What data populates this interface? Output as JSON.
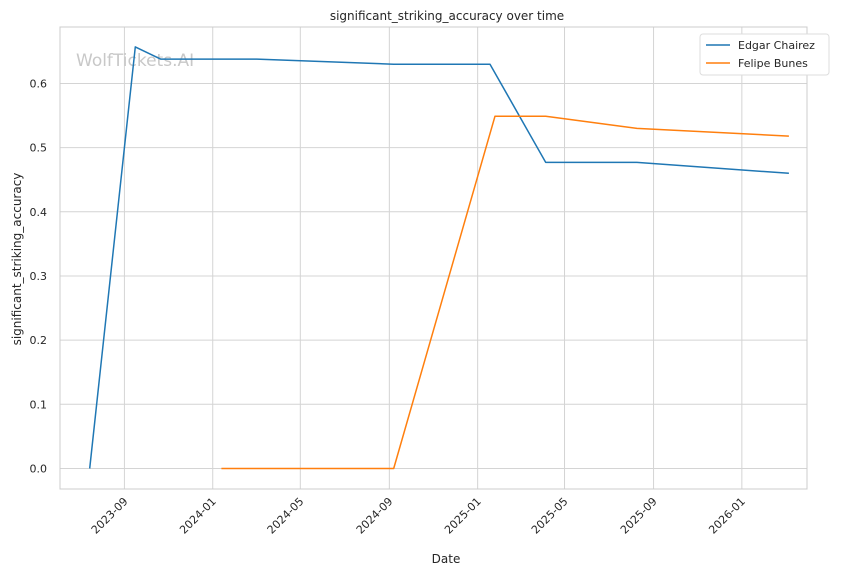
{
  "chart_data": {
    "type": "line",
    "title": "significant_striking_accuracy over time",
    "xlabel": "Date",
    "ylabel": "significant_striking_accuracy",
    "watermark": "WolfTickets.AI",
    "x_ticks": [
      "2023-09",
      "2024-01",
      "2024-05",
      "2024-09",
      "2025-01",
      "2025-05",
      "2025-09",
      "2026-01"
    ],
    "y_ticks": [
      0.0,
      0.1,
      0.2,
      0.3,
      0.4,
      0.5,
      0.6
    ],
    "y_tick_labels": [
      "0.0",
      "0.1",
      "0.2",
      "0.3",
      "0.4",
      "0.5",
      "0.6"
    ],
    "xlim": [
      "2023-06-04",
      "2026-04-01"
    ],
    "ylim": [
      -0.032,
      0.688
    ],
    "grid": true,
    "legend_position": "top-right",
    "series": [
      {
        "name": "Edgar Chairez",
        "color": "#1f77b4",
        "points": [
          {
            "x": "2023-07-15",
            "y": 0.0
          },
          {
            "x": "2023-09-16",
            "y": 0.657
          },
          {
            "x": "2023-10-21",
            "y": 0.638
          },
          {
            "x": "2024-03-02",
            "y": 0.638
          },
          {
            "x": "2024-09-07",
            "y": 0.63
          },
          {
            "x": "2025-01-18",
            "y": 0.63
          },
          {
            "x": "2025-04-05",
            "y": 0.477
          },
          {
            "x": "2025-08-09",
            "y": 0.477
          },
          {
            "x": "2026-03-07",
            "y": 0.46
          }
        ]
      },
      {
        "name": "Felipe Bunes",
        "color": "#ff7f0e",
        "points": [
          {
            "x": "2024-01-13",
            "y": 0.0
          },
          {
            "x": "2024-09-07",
            "y": 0.0
          },
          {
            "x": "2025-01-25",
            "y": 0.549
          },
          {
            "x": "2025-04-05",
            "y": 0.549
          },
          {
            "x": "2025-08-09",
            "y": 0.53
          },
          {
            "x": "2026-03-07",
            "y": 0.518
          }
        ]
      }
    ]
  }
}
